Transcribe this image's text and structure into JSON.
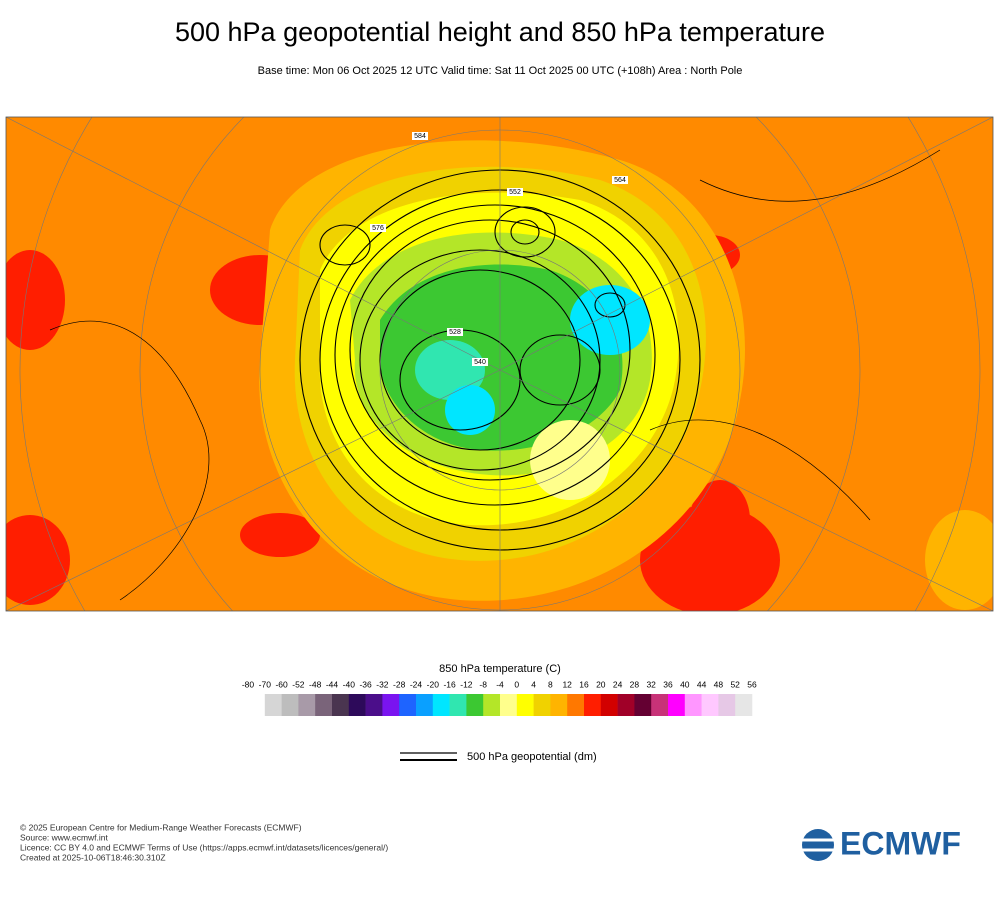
{
  "title": "500 hPa geopotential height and 850 hPa temperature",
  "subtitle": "Base time: Mon 06 Oct 2025 12 UTC Valid time: Sat 11 Oct 2025 00 UTC (+108h) Area : North Pole",
  "map": {
    "contour_labels": [
      "552",
      "576",
      "528",
      "540",
      "564",
      "584"
    ]
  },
  "temperature_legend": {
    "title": "850 hPa temperature (C)",
    "ticks": [
      -80,
      -70,
      -60,
      -52,
      -48,
      -44,
      -40,
      -36,
      -32,
      -28,
      -24,
      -20,
      -16,
      -12,
      -8,
      -4,
      0,
      4,
      8,
      12,
      16,
      20,
      24,
      28,
      32,
      36,
      40,
      44,
      48,
      52,
      56
    ],
    "colors": [
      "#d6d6d6",
      "#bdbdbd",
      "#a89aa8",
      "#7a647a",
      "#4a3550",
      "#2d0a5a",
      "#4b0e8a",
      "#7a14f0",
      "#1e64ff",
      "#0aa0ff",
      "#00e6ff",
      "#30e6b0",
      "#3cc832",
      "#b4e628",
      "#ffff8c",
      "#ffff00",
      "#f0d200",
      "#ffb400",
      "#ff7800",
      "#ff1e00",
      "#d20000",
      "#a00028",
      "#640032",
      "#c83278",
      "#ff00ff",
      "#ff96ff",
      "#ffc8ff",
      "#e6c8e6",
      "#e6e6e6"
    ]
  },
  "contour_legend": {
    "label": "500 hPa geopotential (dm)"
  },
  "footer": {
    "lines": [
      "© 2025 European Centre for Medium-Range Weather Forecasts (ECMWF)",
      "Source: www.ecmwf.int",
      "Licence: CC BY 4.0 and ECMWF Terms of Use (https://apps.ecmwf.int/datasets/licences/general/)",
      "Created at 2025-10-06T18:46:30.310Z"
    ]
  },
  "logo": "ECMWF"
}
